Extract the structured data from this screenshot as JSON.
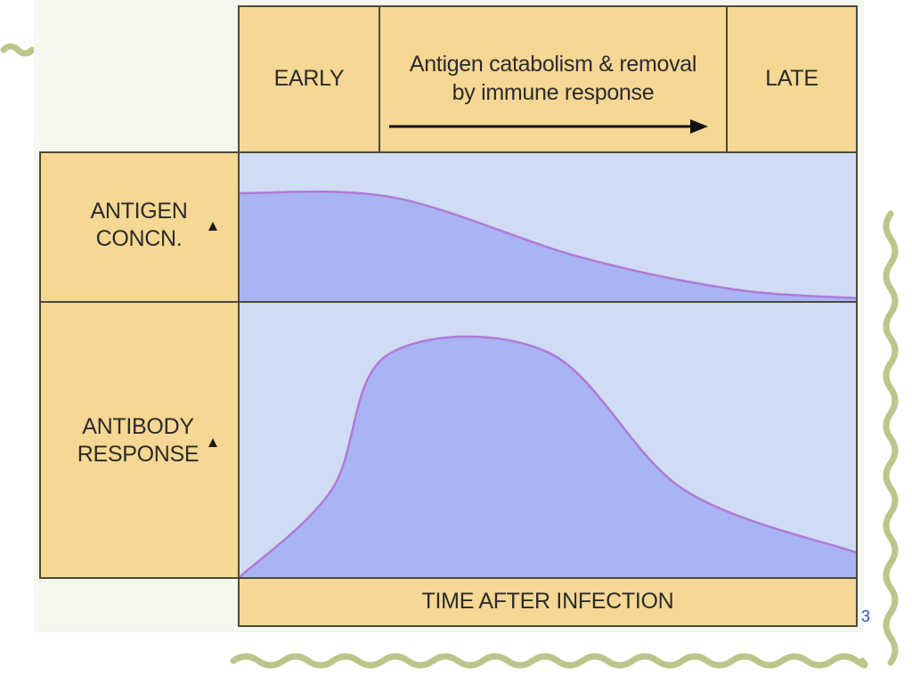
{
  "header": {
    "early_label": "EARLY",
    "middle_label_line1": "Antigen catabolism & removal",
    "middle_label_line2": "by immune response",
    "late_label": "LATE"
  },
  "rows": {
    "antigen": {
      "label_line1": "ANTIGEN",
      "label_line2": "CONCN."
    },
    "antibody": {
      "label_line1": "ANTIBODY",
      "label_line2": "RESPONSE"
    }
  },
  "footer": {
    "x_axis_label": "TIME AFTER INFECTION"
  },
  "page_number": "3",
  "colors": {
    "panel_fill": "#f6d793",
    "plot_background": "#cfdcf3",
    "curve_fill": "#a9b4f2",
    "curve_stroke": "#b07ad8",
    "border": "#4a4a3a",
    "decoration": "#bcc58a"
  },
  "curves": {
    "antigen_concentration": [
      [
        0,
        0.73
      ],
      [
        0.25,
        0.7
      ],
      [
        0.55,
        0.3
      ],
      [
        0.8,
        0.08
      ],
      [
        1.0,
        0.02
      ]
    ],
    "antibody_response": [
      [
        0,
        0.0
      ],
      [
        0.15,
        0.32
      ],
      [
        0.24,
        0.81
      ],
      [
        0.5,
        0.82
      ],
      [
        0.72,
        0.32
      ],
      [
        1.0,
        0.09
      ]
    ]
  }
}
